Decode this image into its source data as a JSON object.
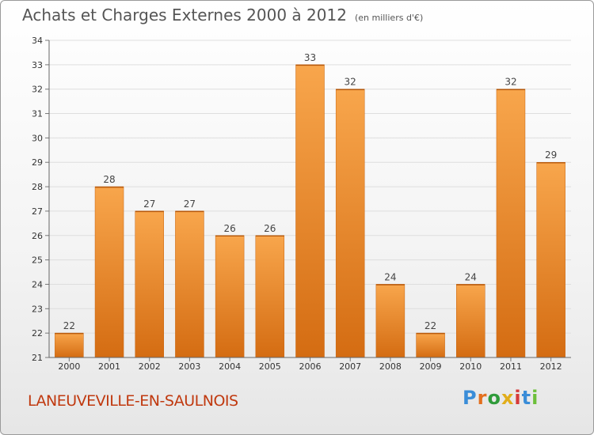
{
  "chart_data": {
    "type": "bar",
    "title": "Achats et Charges Externes 2000 à 2012",
    "subtitle": "(en milliers d'€)",
    "categories": [
      "2000",
      "2001",
      "2002",
      "2003",
      "2004",
      "2005",
      "2006",
      "2007",
      "2008",
      "2009",
      "2010",
      "2011",
      "2012"
    ],
    "values": [
      22,
      28,
      27,
      27,
      26,
      26,
      33,
      32,
      24,
      22,
      24,
      32,
      29
    ],
    "xlabel": "",
    "ylabel": "",
    "ylim": [
      21,
      34
    ],
    "yticks": [
      21,
      22,
      23,
      24,
      25,
      26,
      27,
      28,
      29,
      30,
      31,
      32,
      33,
      34
    ],
    "grid": true,
    "bar_color": "#f0902e"
  },
  "footer": {
    "place": "LANEUVEVILLE-EN-SAULNOIS",
    "logo": "Proxiti"
  }
}
